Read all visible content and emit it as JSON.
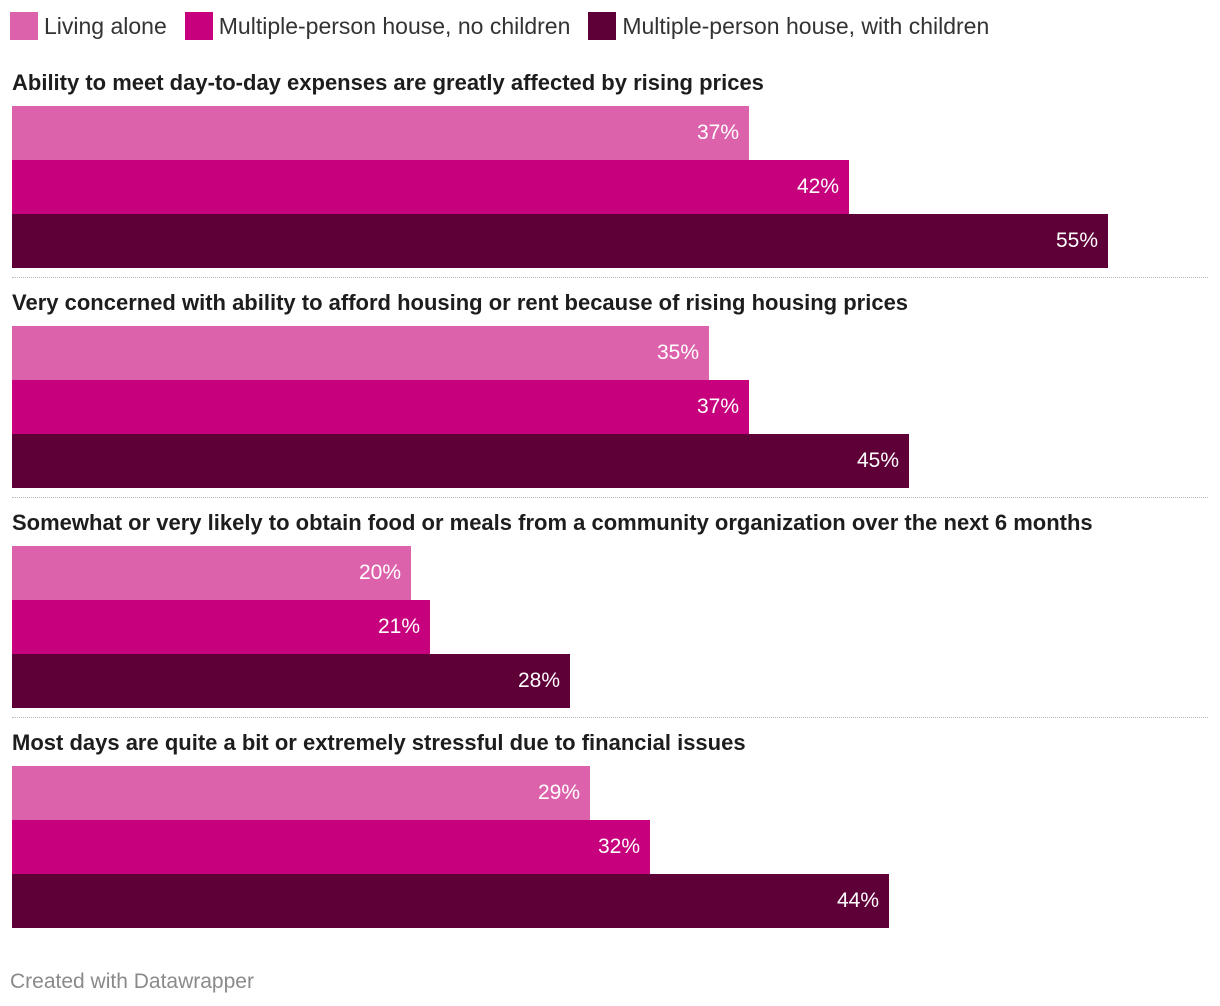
{
  "legend": [
    {
      "label": "Living alone",
      "color": "#dd62ac"
    },
    {
      "label": "Multiple-person house, no children",
      "color": "#c7007d"
    },
    {
      "label": "Multiple-person house, with children",
      "color": "#5e0037"
    }
  ],
  "chart_data": {
    "type": "bar",
    "orientation": "horizontal",
    "grouping": "grouped",
    "categories": [
      "Ability to meet day-to-day expenses are greatly affected by rising prices",
      "Very concerned with ability to afford housing or rent because of rising housing prices",
      "Somewhat or very likely to obtain food or meals from a community organization over the next 6 months",
      "Most days are quite a bit or extremely stressful due to financial issues"
    ],
    "series": [
      {
        "name": "Living alone",
        "color": "#dd62ac",
        "values": [
          37,
          35,
          20,
          29
        ]
      },
      {
        "name": "Multiple-person house, no children",
        "color": "#c7007d",
        "values": [
          42,
          37,
          21,
          32
        ]
      },
      {
        "name": "Multiple-person house, with children",
        "color": "#5e0037",
        "values": [
          55,
          45,
          28,
          44
        ]
      }
    ],
    "value_suffix": "%",
    "xlim": [
      0,
      60
    ],
    "legend_position": "top-left"
  },
  "footer": "Created with Datawrapper"
}
